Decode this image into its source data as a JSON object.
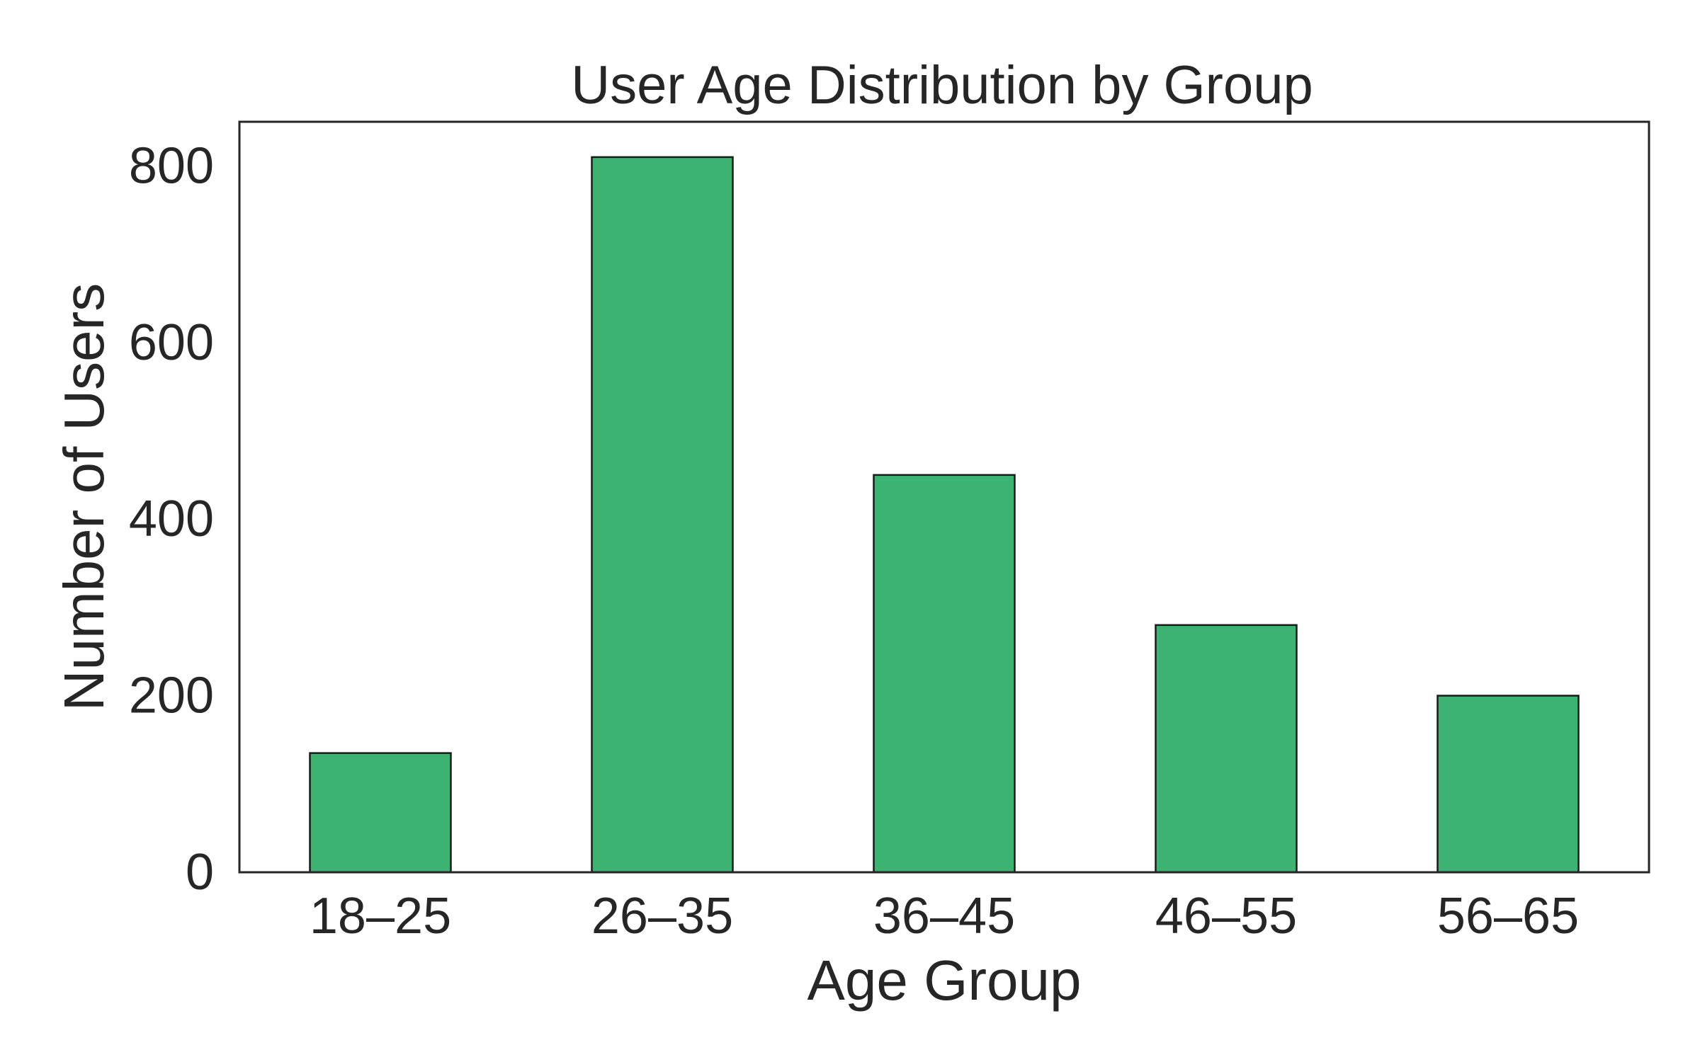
{
  "chart_data": {
    "type": "bar",
    "title": "User Age Distribution by Group",
    "xlabel": "Age Group",
    "ylabel": "Number of Users",
    "categories": [
      "18–25",
      "26–35",
      "36–45",
      "46–55",
      "56–65"
    ],
    "values": [
      135,
      810,
      450,
      280,
      200
    ],
    "yticks": [
      "0",
      "200",
      "400",
      "600",
      "800"
    ],
    "ylim": [
      0,
      850
    ],
    "grid": false,
    "legend": "none",
    "colors": {
      "bar_fill": "#3cb371",
      "bar_edge": "#1a1a1a",
      "axis": "#262626",
      "text": "#262626",
      "background": "#ffffff"
    }
  }
}
